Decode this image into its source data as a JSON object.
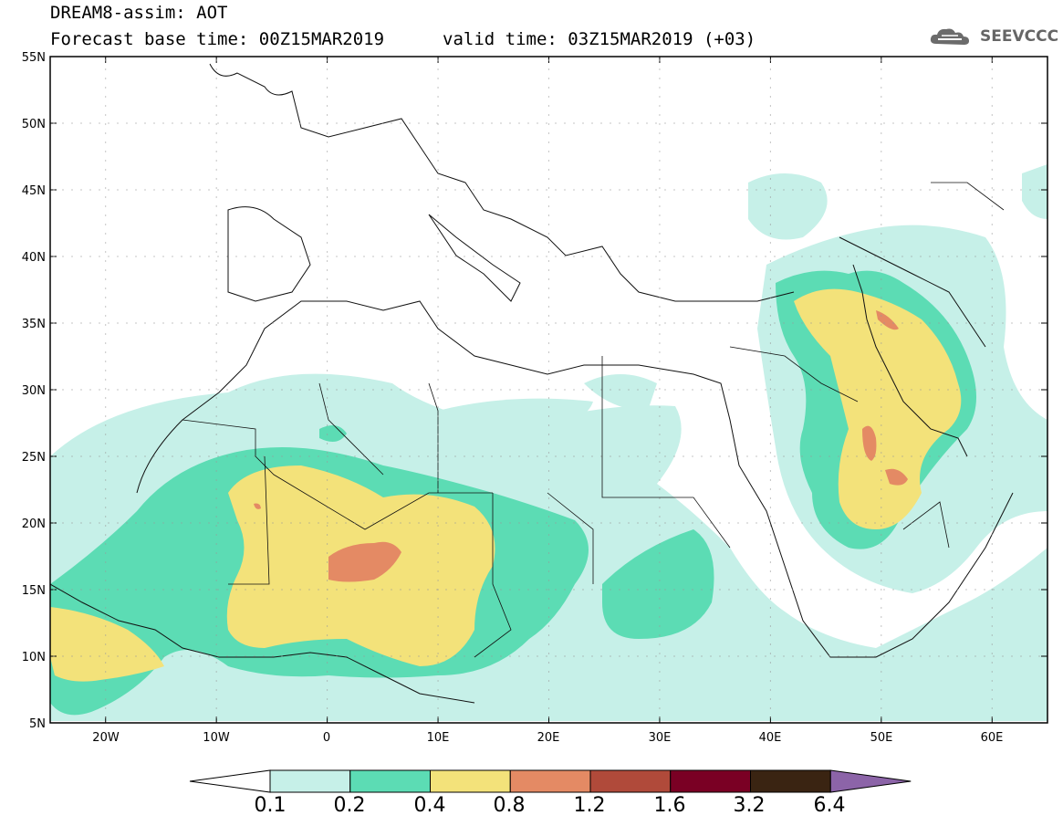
{
  "header": {
    "title": "DREAM8-assim: AOT",
    "base_time": "Forecast base time: 00Z15MAR2019",
    "valid_time": "valid time: 03Z15MAR2019 (+03)",
    "logo": "SEEVCCC"
  },
  "map": {
    "lat_labels": [
      "55N",
      "50N",
      "45N",
      "40N",
      "35N",
      "30N",
      "25N",
      "20N",
      "15N",
      "10N",
      "5N"
    ],
    "lon_labels": [
      "20W",
      "10W",
      "0",
      "10E",
      "20E",
      "30E",
      "40E",
      "50E",
      "60E"
    ],
    "extent": {
      "lon": [
        -25,
        65
      ],
      "lat": [
        5,
        55
      ]
    }
  },
  "colorbar": {
    "labels": [
      "0.1",
      "0.2",
      "0.4",
      "0.8",
      "1.2",
      "1.6",
      "3.2",
      "6.4"
    ],
    "colors": [
      "#ffffff",
      "#c6f0e8",
      "#5cdcb4",
      "#f3e27a",
      "#e48a64",
      "#b04a3a",
      "#7a0024",
      "#3a2412",
      "#8c64a8"
    ]
  }
}
